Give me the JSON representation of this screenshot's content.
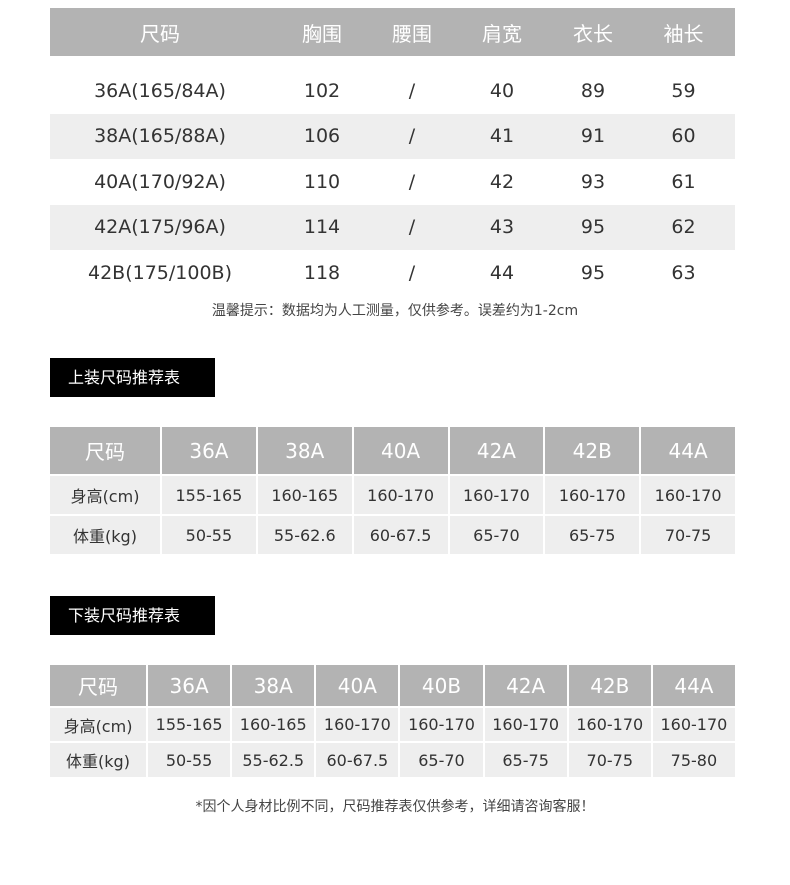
{
  "measurements": {
    "headers": [
      "尺码",
      "胸围",
      "腰围",
      "肩宽",
      "衣长",
      "袖长"
    ],
    "rows": [
      [
        "36A(165/84A)",
        "102",
        "/",
        "40",
        "89",
        "59"
      ],
      [
        "38A(165/88A)",
        "106",
        "/",
        "41",
        "91",
        "60"
      ],
      [
        "40A(170/92A)",
        "110",
        "/",
        "42",
        "93",
        "61"
      ],
      [
        "42A(175/96A)",
        "114",
        "/",
        "43",
        "95",
        "62"
      ],
      [
        "42B(175/100B)",
        "118",
        "/",
        "44",
        "95",
        "63"
      ]
    ],
    "note": "温馨提示：数据均为人工测量，仅供参考。误差约为1-2cm"
  },
  "top_recommend": {
    "title": "上装尺码推荐表",
    "headers": [
      "尺码",
      "36A",
      "38A",
      "40A",
      "42A",
      "42B",
      "44A"
    ],
    "rows": [
      [
        "身高(cm)",
        "155-165",
        "160-165",
        "160-170",
        "160-170",
        "160-170",
        "160-170"
      ],
      [
        "体重(kg)",
        "50-55",
        "55-62.6",
        "60-67.5",
        "65-70",
        "65-75",
        "70-75"
      ]
    ]
  },
  "bottom_recommend": {
    "title": "下装尺码推荐表",
    "headers": [
      "尺码",
      "36A",
      "38A",
      "40A",
      "40B",
      "42A",
      "42B",
      "44A"
    ],
    "rows": [
      [
        "身高(cm)",
        "155-165",
        "160-165",
        "160-170",
        "160-170",
        "160-170",
        "160-170",
        "160-170"
      ],
      [
        "体重(kg)",
        "50-55",
        "55-62.5",
        "60-67.5",
        "65-70",
        "65-75",
        "70-75",
        "75-80"
      ]
    ],
    "note": "*因个人身材比例不同，尺码推荐表仅供参考，详细请咨询客服！"
  },
  "colors": {
    "header_gray": "#b3b3b3",
    "row_shade": "#eeeeee",
    "tag_bg": "#000000"
  }
}
